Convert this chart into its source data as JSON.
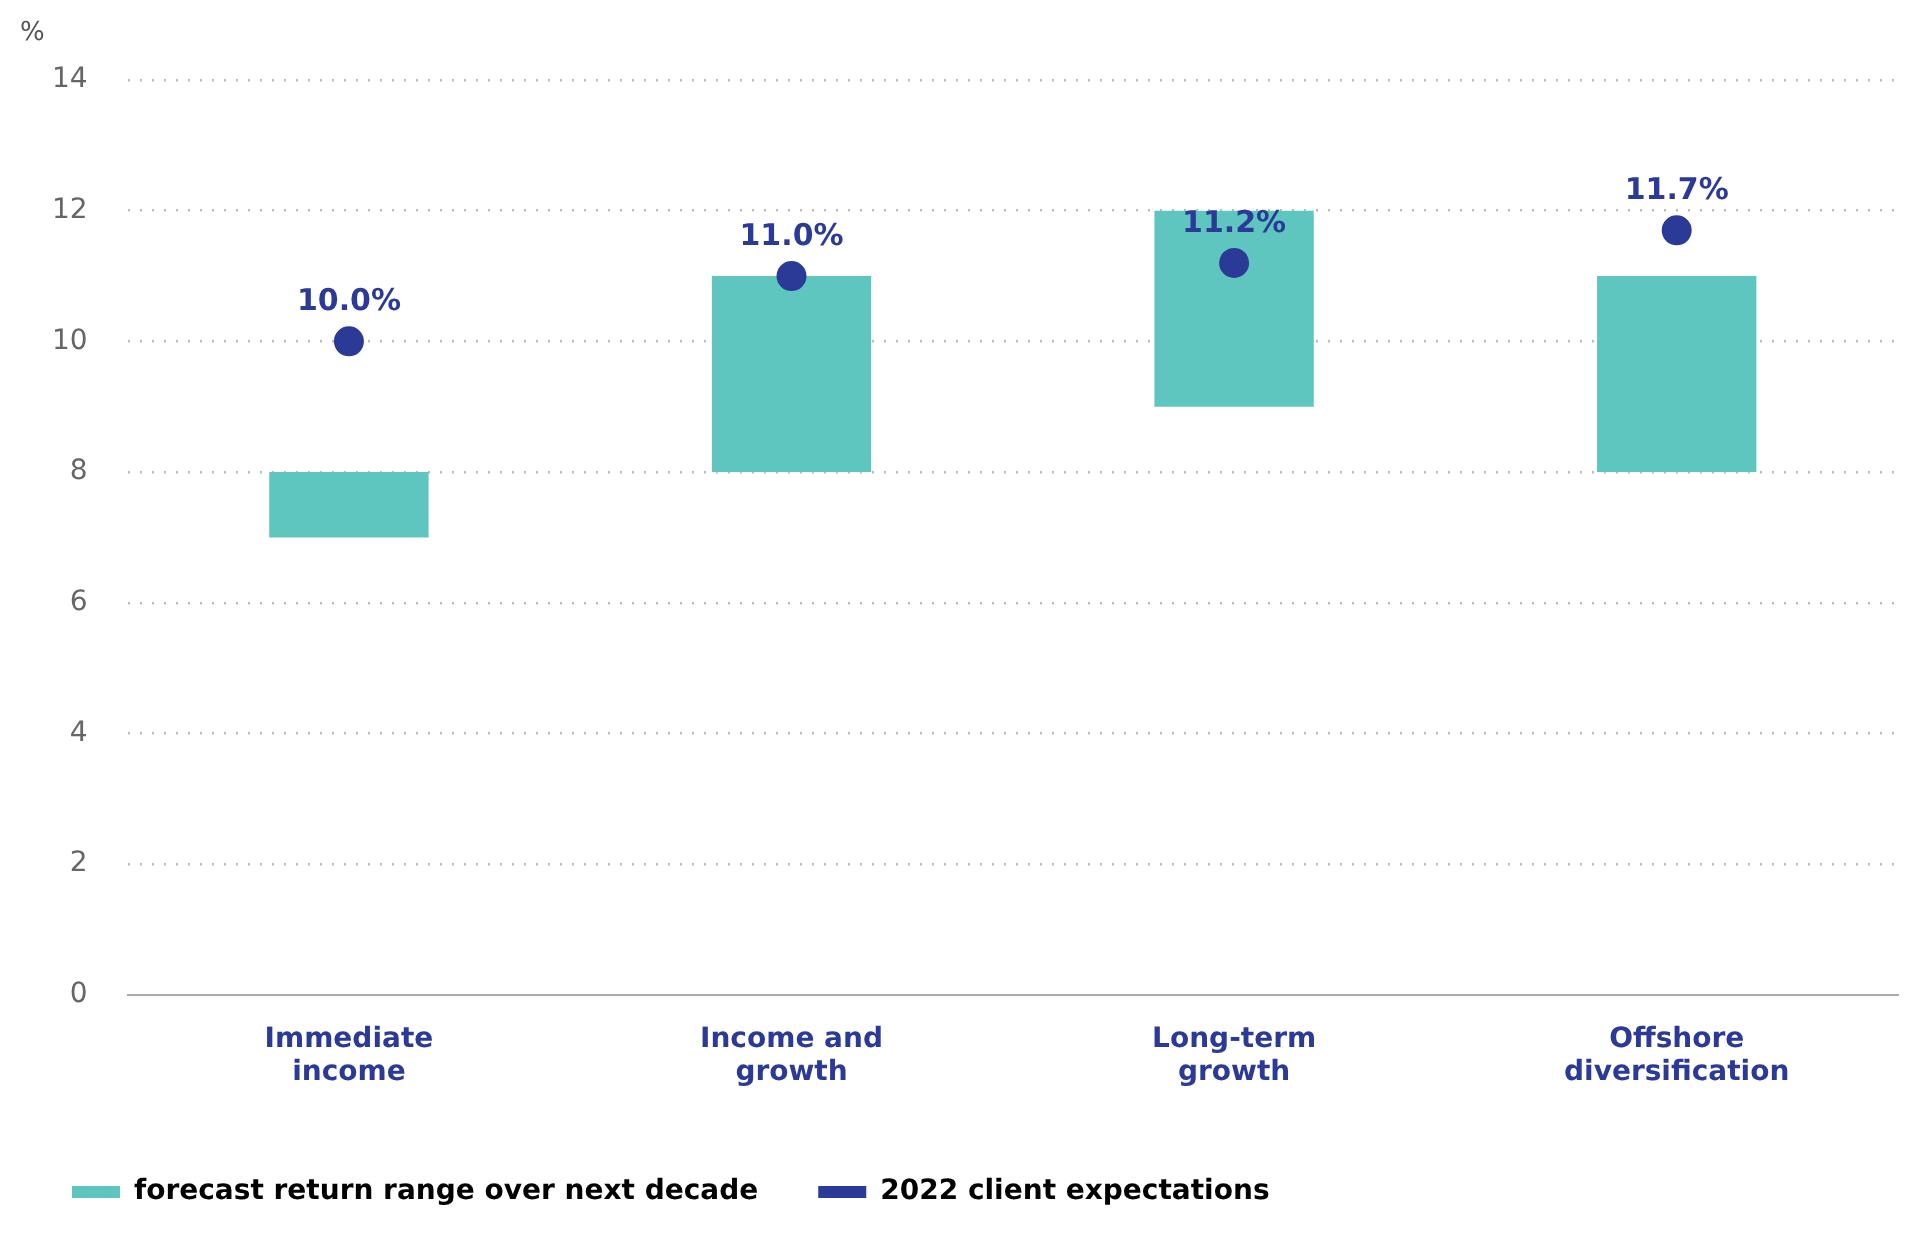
{
  "chart_data": {
    "type": "bar",
    "ylabel": "%",
    "categories": [
      "Immediate income",
      "Income and growth",
      "Long-term growth",
      "Offshore diversification"
    ],
    "series": [
      {
        "name": "forecast return range over next decade",
        "color": "#5ec6bf",
        "base": [
          7,
          8,
          9,
          8
        ],
        "values": [
          1,
          3,
          3,
          3
        ]
      },
      {
        "name": "2022 client expectations",
        "type": "scatter",
        "color": "#2b3a97",
        "x": [
          "Immediate income",
          "Income and growth",
          "Long-term growth",
          "Offshore diversification"
        ],
        "values": [
          10.0,
          11.0,
          11.2,
          11.7
        ],
        "value_labels": [
          "10.0%",
          "11.0%",
          "11.2%",
          "11.7%"
        ],
        "marker": "circle"
      }
    ],
    "ylim": [
      0,
      14
    ],
    "yticks": [
      0,
      2,
      4,
      6,
      8,
      10,
      12,
      14
    ],
    "grid": "y",
    "legend": "bottom"
  }
}
